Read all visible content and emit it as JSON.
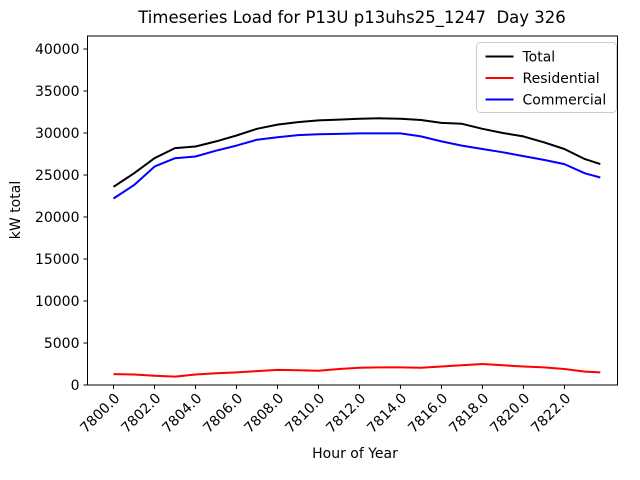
{
  "chart_data": {
    "type": "line",
    "title": "Timeseries Load for P13U p13uhs25_1247  Day 326",
    "xlabel": "Hour of Year",
    "ylabel": "kW total",
    "x": [
      7800,
      7801,
      7802,
      7803,
      7804,
      7805,
      7806,
      7807,
      7808,
      7809,
      7810,
      7811,
      7812,
      7813,
      7814,
      7815,
      7816,
      7817,
      7818,
      7819,
      7820,
      7821,
      7822,
      7823,
      7823.75
    ],
    "series": [
      {
        "name": "Total",
        "color": "#000000",
        "values": [
          23600,
          25200,
          27000,
          28200,
          28400,
          29000,
          29700,
          30500,
          31000,
          31300,
          31500,
          31600,
          31700,
          31750,
          31700,
          31550,
          31200,
          31100,
          30500,
          30000,
          29600,
          28900,
          28100,
          26900,
          26300
        ]
      },
      {
        "name": "Residential",
        "color": "#ff0000",
        "values": [
          1300,
          1250,
          1100,
          1000,
          1250,
          1400,
          1500,
          1650,
          1800,
          1750,
          1700,
          1900,
          2050,
          2100,
          2100,
          2050,
          2200,
          2350,
          2500,
          2350,
          2200,
          2100,
          1900,
          1600,
          1500
        ]
      },
      {
        "name": "Commercial",
        "color": "#0000ff",
        "values": [
          22200,
          23800,
          26000,
          27000,
          27200,
          27900,
          28500,
          29200,
          29500,
          29750,
          29850,
          29900,
          29950,
          29950,
          29950,
          29600,
          29000,
          28500,
          28100,
          27700,
          27250,
          26800,
          26300,
          25200,
          24700
        ]
      }
    ],
    "xticks": [
      7800,
      7802,
      7804,
      7806,
      7808,
      7810,
      7812,
      7814,
      7816,
      7818,
      7820,
      7822
    ],
    "xtick_labels": [
      "7800.0",
      "7802.0",
      "7804.0",
      "7806.0",
      "7808.0",
      "7810.0",
      "7812.0",
      "7814.0",
      "7816.0",
      "7818.0",
      "7820.0",
      "7822.0"
    ],
    "yticks": [
      0,
      5000,
      10000,
      15000,
      20000,
      25000,
      30000,
      35000,
      40000
    ],
    "ytick_labels": [
      "0",
      "5000",
      "10000",
      "15000",
      "20000",
      "25000",
      "30000",
      "35000",
      "40000"
    ],
    "xlim": [
      7798.73,
      7824.59
    ],
    "ylim": [
      0,
      41550
    ],
    "grid": false,
    "legend_position": "upper right",
    "line_width": 2,
    "axis_color": "#000000",
    "legend_border_color": "#cccccc"
  }
}
